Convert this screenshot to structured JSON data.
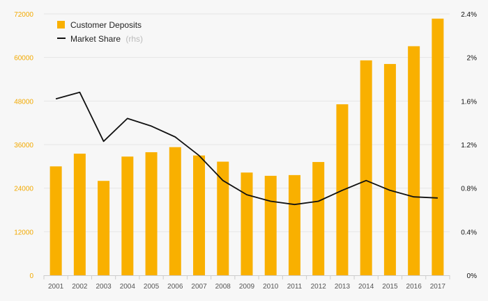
{
  "colors": {
    "bar": "#f9b000",
    "line": "#111111",
    "left_axis_text": "#f2a900",
    "grid": "#e6e6e6",
    "background": "#f7f7f7"
  },
  "chart_data": {
    "type": "bar+line",
    "categories": [
      "2001",
      "2002",
      "2003",
      "2004",
      "2005",
      "2006",
      "2007",
      "2008",
      "2009",
      "2010",
      "2011",
      "2012",
      "2013",
      "2014",
      "2015",
      "2016",
      "2017"
    ],
    "series": [
      {
        "name": "Customer Deposits",
        "kind": "bar",
        "axis": "left",
        "values": [
          30000,
          33500,
          26000,
          32700,
          33900,
          35300,
          33000,
          31300,
          28300,
          27400,
          27600,
          31200,
          47100,
          59200,
          58200,
          63100,
          70700
        ]
      },
      {
        "name": "Market Share",
        "kind": "line",
        "axis": "right",
        "values": [
          1.62,
          1.68,
          1.23,
          1.44,
          1.37,
          1.27,
          1.1,
          0.87,
          0.74,
          0.68,
          0.65,
          0.68,
          0.78,
          0.87,
          0.78,
          0.72,
          0.71
        ]
      }
    ],
    "legend": {
      "items": [
        {
          "label": "Customer Deposits",
          "note": ""
        },
        {
          "label": "Market Share",
          "note": "(rhs)"
        }
      ],
      "placement": "top-left"
    },
    "left_axis": {
      "ylim": [
        0,
        72000
      ],
      "ticks": [
        0,
        12000,
        24000,
        36000,
        48000,
        60000,
        72000
      ],
      "tick_labels": [
        "0",
        "12000",
        "24000",
        "36000",
        "48000",
        "60000",
        "72000"
      ]
    },
    "right_axis": {
      "ylim": [
        0,
        2.4
      ],
      "ticks": [
        0,
        0.4,
        0.8,
        1.2,
        1.6,
        2.0,
        2.4
      ],
      "tick_labels": [
        "0%",
        "0.4%",
        "0.8%",
        "1.2%",
        "1.6%",
        "2%",
        "2.4%"
      ]
    },
    "grid": true
  }
}
